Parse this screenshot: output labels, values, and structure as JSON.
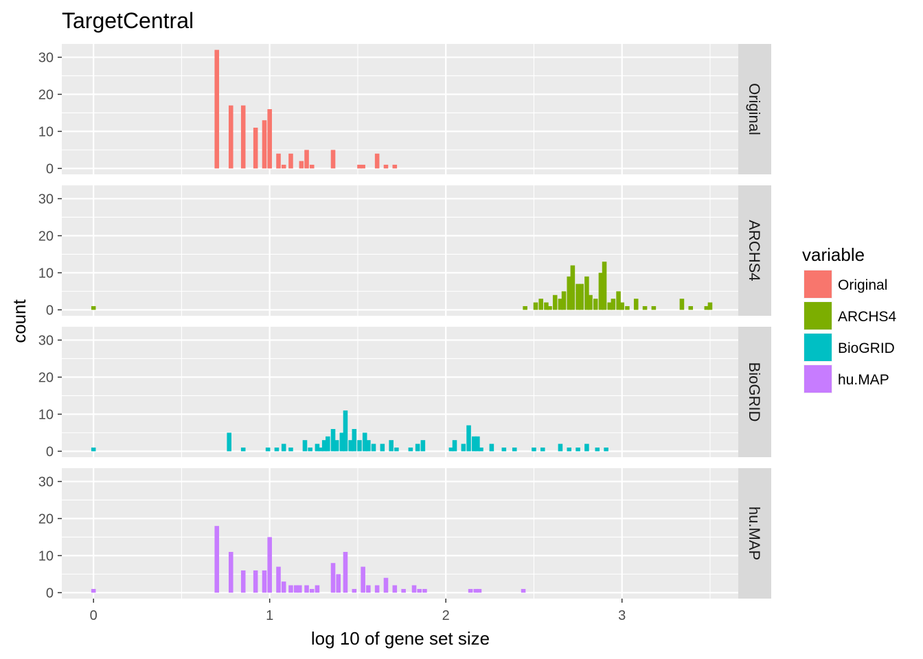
{
  "chart_data": {
    "type": "bar",
    "title": "TargetCentral",
    "xlabel": "log 10 of gene set size",
    "ylabel": "count",
    "xlim": [
      -0.18,
      3.66
    ],
    "ylim": [
      -1.6,
      33.6
    ],
    "x_ticks": [
      0,
      1,
      2,
      3
    ],
    "x_tick_labels": [
      "0",
      "1",
      "2",
      "3"
    ],
    "y_ticks": [
      0,
      10,
      20,
      30
    ],
    "y_tick_labels": [
      "0",
      "10",
      "20",
      "30"
    ],
    "bin_width": 0.0256,
    "grid": true,
    "facet": "rows",
    "legend": {
      "title": "variable",
      "position": "right"
    },
    "series": [
      {
        "name": "Original",
        "color": "#F8766D",
        "bins": [
          [
            0.7,
            32
          ],
          [
            0.78,
            17
          ],
          [
            0.85,
            17
          ],
          [
            0.92,
            11
          ],
          [
            0.97,
            13
          ],
          [
            1.0,
            16
          ],
          [
            1.05,
            4
          ],
          [
            1.08,
            1
          ],
          [
            1.12,
            4
          ],
          [
            1.18,
            2
          ],
          [
            1.21,
            5
          ],
          [
            1.24,
            1
          ],
          [
            1.36,
            5
          ],
          [
            1.51,
            1
          ],
          [
            1.53,
            1
          ],
          [
            1.61,
            4
          ],
          [
            1.66,
            1
          ],
          [
            1.71,
            1
          ]
        ]
      },
      {
        "name": "ARCHS4",
        "color": "#7CAE00",
        "bins": [
          [
            0.0,
            1
          ],
          [
            2.45,
            1
          ],
          [
            2.51,
            2
          ],
          [
            2.54,
            3
          ],
          [
            2.57,
            2
          ],
          [
            2.59,
            1
          ],
          [
            2.62,
            4
          ],
          [
            2.65,
            3
          ],
          [
            2.67,
            5
          ],
          [
            2.7,
            9
          ],
          [
            2.72,
            12
          ],
          [
            2.75,
            7
          ],
          [
            2.77,
            7
          ],
          [
            2.8,
            9
          ],
          [
            2.82,
            4
          ],
          [
            2.85,
            3
          ],
          [
            2.88,
            10
          ],
          [
            2.9,
            13
          ],
          [
            2.93,
            2
          ],
          [
            2.95,
            3
          ],
          [
            2.98,
            5
          ],
          [
            3.0,
            2
          ],
          [
            3.03,
            1
          ],
          [
            3.08,
            3
          ],
          [
            3.13,
            1
          ],
          [
            3.18,
            1
          ],
          [
            3.34,
            3
          ],
          [
            3.39,
            1
          ],
          [
            3.48,
            1
          ],
          [
            3.5,
            2
          ]
        ]
      },
      {
        "name": "BioGRID",
        "color": "#00BFC4",
        "bins": [
          [
            0.0,
            1
          ],
          [
            0.77,
            5
          ],
          [
            0.85,
            1
          ],
          [
            0.99,
            1
          ],
          [
            1.04,
            1
          ],
          [
            1.08,
            2
          ],
          [
            1.12,
            1
          ],
          [
            1.2,
            3
          ],
          [
            1.23,
            1
          ],
          [
            1.27,
            2
          ],
          [
            1.29,
            1
          ],
          [
            1.31,
            3
          ],
          [
            1.33,
            4
          ],
          [
            1.36,
            6
          ],
          [
            1.38,
            3
          ],
          [
            1.41,
            5
          ],
          [
            1.43,
            11
          ],
          [
            1.46,
            3
          ],
          [
            1.48,
            6
          ],
          [
            1.51,
            3
          ],
          [
            1.54,
            5
          ],
          [
            1.56,
            3
          ],
          [
            1.59,
            2
          ],
          [
            1.64,
            2
          ],
          [
            1.69,
            3
          ],
          [
            1.72,
            1
          ],
          [
            1.8,
            1
          ],
          [
            1.84,
            2
          ],
          [
            1.87,
            3
          ],
          [
            2.03,
            1
          ],
          [
            2.05,
            3
          ],
          [
            2.1,
            2
          ],
          [
            2.13,
            7
          ],
          [
            2.16,
            4
          ],
          [
            2.18,
            4
          ],
          [
            2.2,
            1
          ],
          [
            2.26,
            2
          ],
          [
            2.33,
            1
          ],
          [
            2.39,
            1
          ],
          [
            2.5,
            1
          ],
          [
            2.55,
            1
          ],
          [
            2.65,
            2
          ],
          [
            2.7,
            1
          ],
          [
            2.75,
            1
          ],
          [
            2.8,
            2
          ],
          [
            2.86,
            1
          ],
          [
            2.91,
            1
          ]
        ]
      },
      {
        "name": "hu.MAP",
        "color": "#C77CFF",
        "bins": [
          [
            0.0,
            1
          ],
          [
            0.7,
            18
          ],
          [
            0.78,
            11
          ],
          [
            0.85,
            6
          ],
          [
            0.92,
            6
          ],
          [
            0.97,
            6
          ],
          [
            1.0,
            15
          ],
          [
            1.05,
            7
          ],
          [
            1.08,
            3
          ],
          [
            1.12,
            2
          ],
          [
            1.15,
            2
          ],
          [
            1.17,
            2
          ],
          [
            1.21,
            2
          ],
          [
            1.24,
            1
          ],
          [
            1.27,
            2
          ],
          [
            1.36,
            8
          ],
          [
            1.39,
            5
          ],
          [
            1.43,
            11
          ],
          [
            1.48,
            1
          ],
          [
            1.53,
            7
          ],
          [
            1.56,
            2
          ],
          [
            1.61,
            2
          ],
          [
            1.66,
            4
          ],
          [
            1.71,
            2
          ],
          [
            1.76,
            1
          ],
          [
            1.82,
            2
          ],
          [
            1.85,
            1
          ],
          [
            1.88,
            1
          ],
          [
            2.14,
            1
          ],
          [
            2.17,
            1
          ],
          [
            2.19,
            1
          ],
          [
            2.44,
            1
          ]
        ]
      }
    ]
  }
}
